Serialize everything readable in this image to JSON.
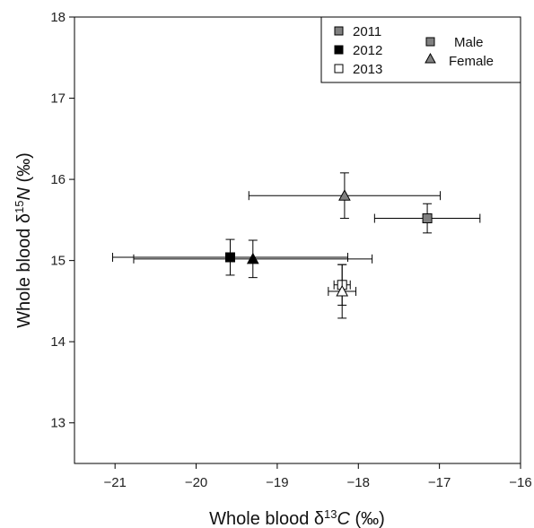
{
  "chart_data": {
    "type": "scatter",
    "title": "",
    "xlabel": {
      "prefix": "Whole blood δ",
      "superscript": "13",
      "italic": "C",
      "suffix": " (‰)"
    },
    "ylabel": {
      "prefix": "Whole blood δ",
      "superscript": "15",
      "italic": "N",
      "suffix": " (‰)"
    },
    "xlim": [
      -21.5,
      -16
    ],
    "ylim": [
      12.5,
      18
    ],
    "xticks": [
      -21,
      -20,
      -19,
      -18,
      -17,
      -16
    ],
    "xtick_labels": [
      "−21",
      "−20",
      "−19",
      "−18",
      "−17",
      "−16"
    ],
    "yticks": [
      13,
      14,
      15,
      16,
      17,
      18
    ],
    "ytick_labels": [
      "13",
      "14",
      "15",
      "16",
      "17",
      "18"
    ],
    "grid": false,
    "legend_position": "top-right",
    "legend_year": [
      {
        "label": "2011",
        "fill": "#808080"
      },
      {
        "label": "2012",
        "fill": "#000000"
      },
      {
        "label": "2013",
        "fill": "#ffffff"
      }
    ],
    "legend_sex": [
      {
        "label": "Male",
        "shape": "square",
        "fill": "#808080"
      },
      {
        "label": "Female",
        "shape": "triangle",
        "fill": "#808080"
      }
    ],
    "points": [
      {
        "year": "2011",
        "sex": "Male",
        "shape": "square",
        "fill": "#808080",
        "x": -17.15,
        "y": 15.52,
        "xerr": 0.65,
        "yerr": 0.18
      },
      {
        "year": "2011",
        "sex": "Female",
        "shape": "triangle",
        "fill": "#808080",
        "x": -18.17,
        "y": 15.8,
        "xerr": 1.18,
        "yerr": 0.28
      },
      {
        "year": "2012",
        "sex": "Male",
        "shape": "square",
        "fill": "#000000",
        "x": -19.58,
        "y": 15.04,
        "xerr": 1.45,
        "yerr": 0.22
      },
      {
        "year": "2012",
        "sex": "Female",
        "shape": "triangle",
        "fill": "#000000",
        "x": -19.3,
        "y": 15.02,
        "xerr": 1.47,
        "yerr": 0.23
      },
      {
        "year": "2013",
        "sex": "Male",
        "shape": "square",
        "fill": "#ffffff",
        "x": -18.2,
        "y": 14.7,
        "xerr": 0.1,
        "yerr": 0.25
      },
      {
        "year": "2013",
        "sex": "Female",
        "shape": "triangle",
        "fill": "#ffffff",
        "x": -18.2,
        "y": 14.62,
        "xerr": 0.17,
        "yerr": 0.33
      }
    ]
  }
}
